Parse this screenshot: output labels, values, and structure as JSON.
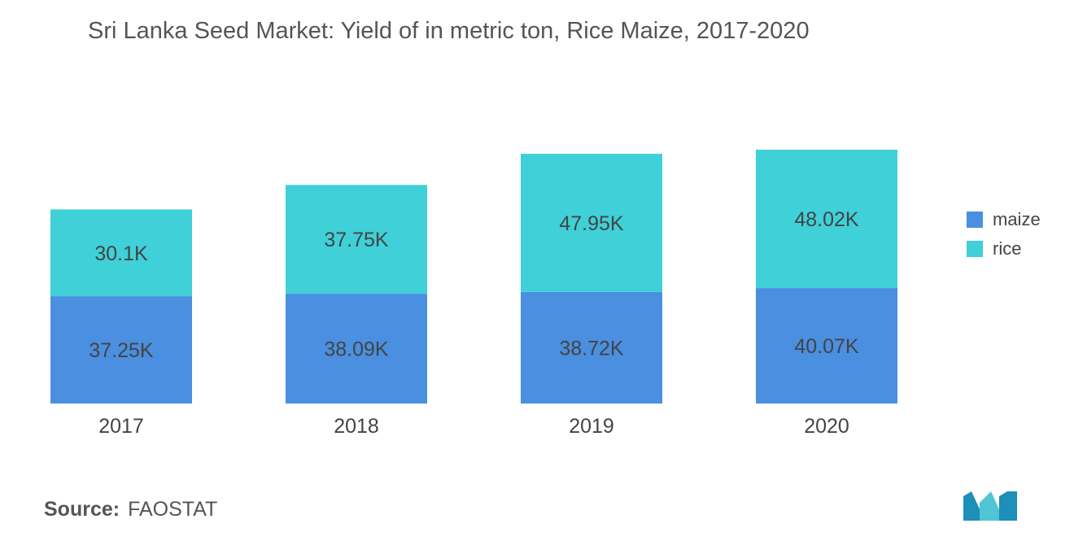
{
  "title": "Sri Lanka Seed Market: Yield of in metric ton, Rice  Maize, 2017-2020",
  "source": {
    "label": "Source:",
    "value": "FAOSTAT"
  },
  "colors": {
    "maize": "#4a8fe0",
    "rice": "#3fd0d8",
    "text": "#444444"
  },
  "chart_data": {
    "type": "bar",
    "stacked": true,
    "categories": [
      "2017",
      "2018",
      "2019",
      "2020"
    ],
    "series": [
      {
        "name": "maize",
        "values": [
          37.25,
          38.09,
          38.72,
          40.07
        ],
        "labels": [
          "37.25K",
          "38.09K",
          "38.72K",
          "40.07K"
        ]
      },
      {
        "name": "rice",
        "values": [
          30.1,
          37.75,
          47.95,
          48.02
        ],
        "labels": [
          "30.1K",
          "37.75K",
          "47.95K",
          "48.02K"
        ]
      }
    ],
    "unit": "K",
    "ylim": [
      0,
      88.09
    ],
    "legend_position": "right",
    "grid": false
  }
}
